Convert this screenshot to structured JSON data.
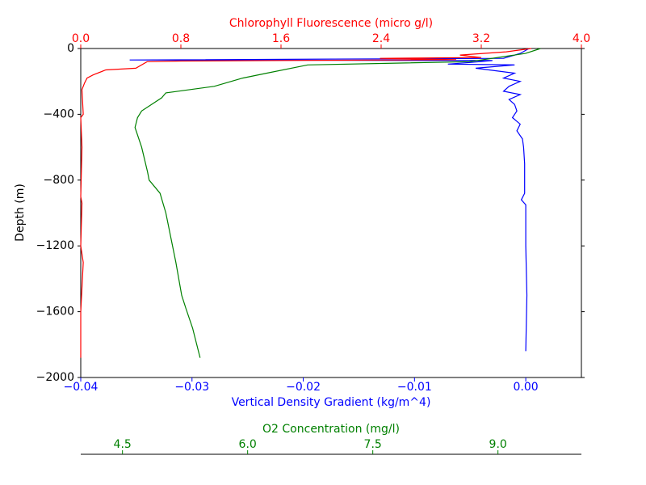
{
  "chart_data": {
    "type": "line",
    "ylabel": "Depth (m)",
    "ylim": [
      0,
      -2000
    ],
    "yticks": [
      {
        "value": 0,
        "label": "0"
      },
      {
        "value": -400,
        "label": "−400"
      },
      {
        "value": -800,
        "label": "−800"
      },
      {
        "value": -1200,
        "label": "−1200"
      },
      {
        "value": -1600,
        "label": "−1600"
      },
      {
        "value": -2000,
        "label": "−2000"
      }
    ],
    "axes": [
      {
        "id": "bottom",
        "label": "Vertical Density Gradient (kg/m^4)",
        "color": "#0000ff",
        "xlim": [
          -0.04,
          0.005
        ],
        "xticks": [
          {
            "value": -0.04,
            "label": "−0.04"
          },
          {
            "value": -0.03,
            "label": "−0.03"
          },
          {
            "value": -0.02,
            "label": "−0.02"
          },
          {
            "value": -0.01,
            "label": "−0.01"
          },
          {
            "value": 0,
            "label": "0.00"
          }
        ]
      },
      {
        "id": "top",
        "label": "Chlorophyll Fluorescence (micro g/l)",
        "color": "#ff0000",
        "xlim": [
          0,
          4
        ],
        "xticks": [
          {
            "value": 0,
            "label": "0.0"
          },
          {
            "value": 0.8,
            "label": "0.8"
          },
          {
            "value": 1.6,
            "label": "1.6"
          },
          {
            "value": 2.4,
            "label": "2.4"
          },
          {
            "value": 3.2,
            "label": "3.2"
          },
          {
            "value": 4,
            "label": "4.0"
          }
        ]
      },
      {
        "id": "offset",
        "label": "O2 Concentration (mg/l)",
        "color": "#008000",
        "xlim": [
          4.0,
          10.0
        ],
        "xticks": [
          {
            "value": 4.5,
            "label": "4.5"
          },
          {
            "value": 6,
            "label": "6.0"
          },
          {
            "value": 7.5,
            "label": "7.5"
          },
          {
            "value": 9,
            "label": "9.0"
          }
        ]
      }
    ],
    "series": [
      {
        "axis": "bottom",
        "color": "#0000ff",
        "depth": [
          0,
          -30,
          -60,
          -70,
          -73,
          -85,
          -95,
          -100,
          -120,
          -150,
          -180,
          -200,
          -230,
          -260,
          -280,
          -310,
          -340,
          -380,
          -420,
          -460,
          -500,
          -550,
          -600,
          -700,
          -880,
          -920,
          -950,
          -1200,
          -1500,
          -1840
        ],
        "values": [
          0.0003,
          -0.0005,
          -0.002,
          -0.0356,
          -0.003,
          -0.005,
          -0.007,
          -0.001,
          -0.0045,
          -0.001,
          -0.002,
          -0.0005,
          -0.0015,
          -0.002,
          -0.0005,
          -0.0015,
          -0.001,
          -0.0008,
          -0.0012,
          -0.0005,
          -0.0008,
          -0.0003,
          -0.0002,
          -0.0001,
          -0.0001,
          -0.0004,
          0.0,
          0.0,
          0.0001,
          0.0
        ]
      },
      {
        "axis": "top",
        "color": "#ff0000",
        "depth": [
          0,
          -20,
          -40,
          -55,
          -60,
          -68,
          -72,
          -76,
          -80,
          -120,
          -130,
          -160,
          -180,
          -210,
          -250,
          -400,
          -420,
          -600,
          -900,
          -940,
          -1200,
          -1300,
          -1600,
          -1880
        ],
        "values": [
          3.6,
          3.4,
          3.03,
          3.2,
          2.39,
          3.0,
          1.8,
          0.8,
          0.53,
          0.44,
          0.2,
          0.1,
          0.05,
          0.03,
          0.01,
          0.02,
          0.0,
          0.01,
          0.0,
          0.01,
          0.0,
          0.02,
          0.0,
          0.0
        ]
      },
      {
        "axis": "offset",
        "color": "#008000",
        "depth": [
          0,
          -30,
          -80,
          -100,
          -150,
          -180,
          -230,
          -270,
          -300,
          -380,
          -420,
          -480,
          -600,
          -750,
          -800,
          -880,
          -1000,
          -1300,
          -1500,
          -1580,
          -1700,
          -1880
        ],
        "values": [
          9.51,
          9.33,
          8.66,
          6.72,
          6.23,
          5.94,
          5.6,
          5.02,
          4.97,
          4.73,
          4.68,
          4.65,
          4.73,
          4.8,
          4.82,
          4.95,
          5.02,
          5.14,
          5.21,
          5.26,
          5.34,
          5.43
        ]
      }
    ]
  }
}
